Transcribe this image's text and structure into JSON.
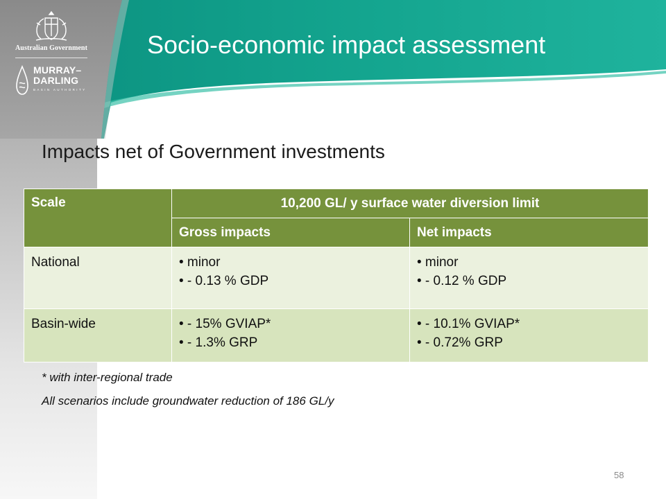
{
  "logos": {
    "government": "Australian Government",
    "mdba_line1": "MURRAY–",
    "mdba_line2": "DARLING",
    "mdba_line3": "BASIN AUTHORITY"
  },
  "title": "Socio-economic impact assessment",
  "subtitle": "Impacts net of Government investments",
  "table": {
    "scale_header": "Scale",
    "group_header": "10,200 GL/ y surface water diversion limit",
    "gross_header": "Gross impacts",
    "net_header": "Net impacts",
    "rows": [
      {
        "scale": "National",
        "gross": [
          "• minor",
          "• - 0.13 % GDP"
        ],
        "net": [
          "• minor",
          "• - 0.12 % GDP"
        ]
      },
      {
        "scale": "Basin-wide",
        "gross": [
          "• - 15% GVIAP*",
          "• - 1.3% GRP"
        ],
        "net": [
          "• - 10.1% GVIAP*",
          "• - 0.72% GRP"
        ]
      }
    ]
  },
  "footnotes": [
    "* with inter-regional trade",
    "All scenarios include groundwater reduction of 186 GL/y"
  ],
  "page_number": "58",
  "colors": {
    "header_green": "#76923c",
    "row_light": "#ebf1de",
    "row_mid": "#d7e4bd",
    "teal": "#0e9a86"
  },
  "icons": [
    "coat-of-arms-icon",
    "water-drop-icon"
  ]
}
